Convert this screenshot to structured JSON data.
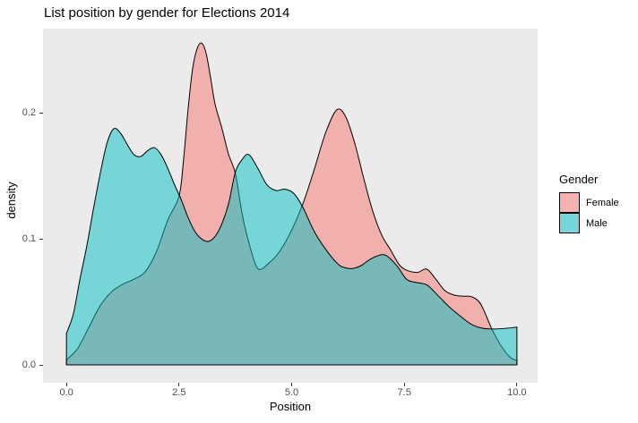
{
  "chart_data": {
    "type": "area",
    "subtype": "overlapping-density-curves",
    "title": "List position by gender for Elections 2014",
    "xlabel": "Position",
    "ylabel": "density",
    "xlim": [
      -0.52,
      10.46
    ],
    "ylim": [
      -0.0142,
      0.267
    ],
    "grid": false,
    "panel_bg": "#EBEBEB",
    "outline_color": "#000000",
    "fill_alpha": 0.5,
    "x_ticks": [
      {
        "value": 0.0,
        "label": "0.0"
      },
      {
        "value": 2.5,
        "label": "2.5"
      },
      {
        "value": 5.0,
        "label": "5.0"
      },
      {
        "value": 7.5,
        "label": "7.5"
      },
      {
        "value": 10.0,
        "label": "10.0"
      }
    ],
    "y_ticks": [
      {
        "value": 0.0,
        "label": "0.0"
      },
      {
        "value": 0.1,
        "label": "0.1"
      },
      {
        "value": 0.2,
        "label": "0.2"
      }
    ],
    "legend": {
      "title": "Gender",
      "position": "right",
      "items": [
        {
          "label": "Female",
          "swatch": "#F5B2AE"
        },
        {
          "label": "Male",
          "swatch": "#76D6D9"
        }
      ]
    },
    "series": [
      {
        "name": "Female",
        "color": "#F8766D",
        "points": [
          [
            0,
            0.004
          ],
          [
            0.25,
            0.013
          ],
          [
            0.5,
            0.03
          ],
          [
            0.75,
            0.047
          ],
          [
            1.0,
            0.058
          ],
          [
            1.25,
            0.064
          ],
          [
            1.5,
            0.068
          ],
          [
            1.75,
            0.074
          ],
          [
            2.0,
            0.09
          ],
          [
            2.25,
            0.115
          ],
          [
            2.5,
            0.134
          ],
          [
            2.6,
            0.163
          ],
          [
            2.7,
            0.203
          ],
          [
            2.8,
            0.235
          ],
          [
            2.9,
            0.251
          ],
          [
            3.0,
            0.2555
          ],
          [
            3.1,
            0.2475
          ],
          [
            3.2,
            0.228
          ],
          [
            3.3,
            0.207
          ],
          [
            3.45,
            0.188
          ],
          [
            3.6,
            0.167
          ],
          [
            3.75,
            0.152
          ],
          [
            3.9,
            0.12
          ],
          [
            4.05,
            0.097
          ],
          [
            4.25,
            0.0765
          ],
          [
            4.5,
            0.081
          ],
          [
            4.75,
            0.091
          ],
          [
            5.0,
            0.107
          ],
          [
            5.25,
            0.128
          ],
          [
            5.5,
            0.155
          ],
          [
            5.75,
            0.184
          ],
          [
            6.0,
            0.2025
          ],
          [
            6.2,
            0.197
          ],
          [
            6.4,
            0.176
          ],
          [
            6.6,
            0.148
          ],
          [
            6.8,
            0.122
          ],
          [
            7.0,
            0.103
          ],
          [
            7.2,
            0.091
          ],
          [
            7.4,
            0.079
          ],
          [
            7.6,
            0.0745
          ],
          [
            7.8,
            0.0735
          ],
          [
            8.0,
            0.076
          ],
          [
            8.2,
            0.068
          ],
          [
            8.4,
            0.059
          ],
          [
            8.6,
            0.0555
          ],
          [
            8.8,
            0.0545
          ],
          [
            9.0,
            0.054
          ],
          [
            9.2,
            0.048
          ],
          [
            9.45,
            0.028
          ],
          [
            9.65,
            0.015
          ],
          [
            9.85,
            0.006
          ],
          [
            10,
            0.0035
          ]
        ]
      },
      {
        "name": "Male",
        "color": "#00BFC4",
        "points": [
          [
            0,
            0.025
          ],
          [
            0.15,
            0.04
          ],
          [
            0.3,
            0.068
          ],
          [
            0.45,
            0.094
          ],
          [
            0.6,
            0.124
          ],
          [
            0.75,
            0.152
          ],
          [
            0.9,
            0.176
          ],
          [
            1.05,
            0.1875
          ],
          [
            1.2,
            0.184
          ],
          [
            1.35,
            0.175
          ],
          [
            1.5,
            0.167
          ],
          [
            1.65,
            0.1655
          ],
          [
            1.8,
            0.17
          ],
          [
            1.95,
            0.1725
          ],
          [
            2.1,
            0.167
          ],
          [
            2.25,
            0.156
          ],
          [
            2.4,
            0.143
          ],
          [
            2.55,
            0.131
          ],
          [
            2.7,
            0.117
          ],
          [
            2.85,
            0.106
          ],
          [
            3.0,
            0.1
          ],
          [
            3.15,
            0.098
          ],
          [
            3.3,
            0.102
          ],
          [
            3.45,
            0.112
          ],
          [
            3.6,
            0.128
          ],
          [
            3.75,
            0.153
          ],
          [
            3.9,
            0.163
          ],
          [
            4.05,
            0.167
          ],
          [
            4.25,
            0.156
          ],
          [
            4.45,
            0.143
          ],
          [
            4.65,
            0.1385
          ],
          [
            4.85,
            0.1395
          ],
          [
            5.05,
            0.136
          ],
          [
            5.25,
            0.125
          ],
          [
            5.5,
            0.106
          ],
          [
            5.75,
            0.092
          ],
          [
            6.0,
            0.081
          ],
          [
            6.15,
            0.0775
          ],
          [
            6.35,
            0.0765
          ],
          [
            6.55,
            0.079
          ],
          [
            6.75,
            0.084
          ],
          [
            7.0,
            0.0875
          ],
          [
            7.15,
            0.0855
          ],
          [
            7.35,
            0.078
          ],
          [
            7.55,
            0.068
          ],
          [
            7.75,
            0.0655
          ],
          [
            8.0,
            0.0635
          ],
          [
            8.25,
            0.055
          ],
          [
            8.5,
            0.046
          ],
          [
            8.75,
            0.0385
          ],
          [
            9.0,
            0.032
          ],
          [
            9.25,
            0.029
          ],
          [
            9.5,
            0.0285
          ],
          [
            9.75,
            0.029
          ],
          [
            10,
            0.03
          ]
        ]
      }
    ]
  }
}
